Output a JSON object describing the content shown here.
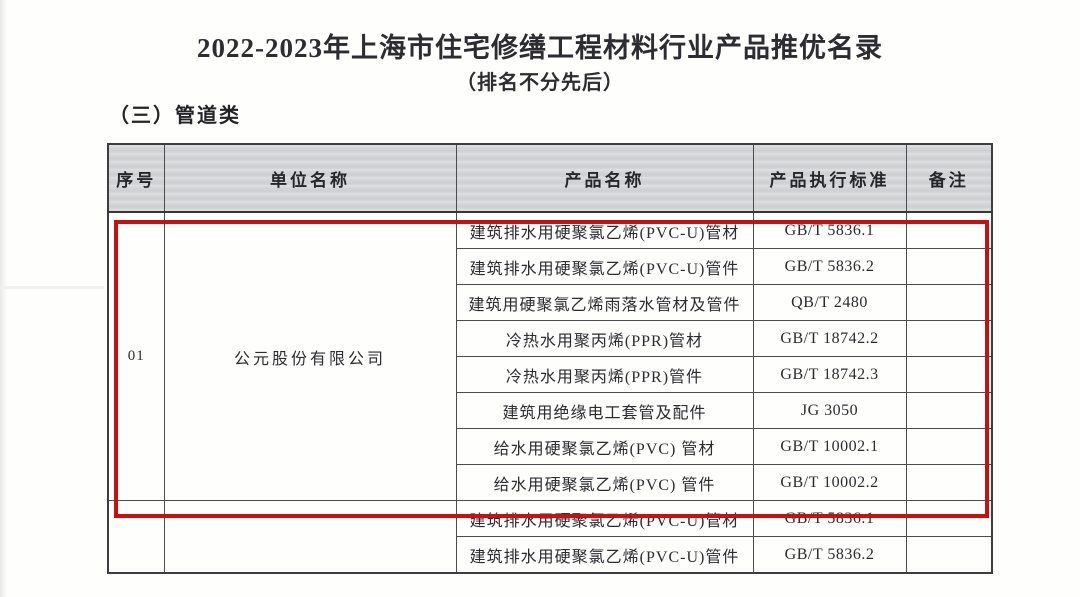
{
  "page": {
    "title": "2022-2023年上海市住宅修缮工程材料行业产品推优名录",
    "subtitle": "（排名不分先后）",
    "section_heading": "（三）管道类"
  },
  "table": {
    "columns": [
      "序号",
      "单位名称",
      "产品名称",
      "产品执行标准",
      "备注"
    ],
    "groups": [
      {
        "no": "01",
        "company": "公元股份有限公司",
        "highlighted": true,
        "products": [
          {
            "name": "建筑排水用硬聚氯乙烯(PVC-U)管材",
            "standard": "GB/T 5836.1",
            "remark": ""
          },
          {
            "name": "建筑排水用硬聚氯乙烯(PVC-U)管件",
            "standard": "GB/T 5836.2",
            "remark": ""
          },
          {
            "name": "建筑用硬聚氯乙烯雨落水管材及管件",
            "standard": "QB/T 2480",
            "remark": ""
          },
          {
            "name": "冷热水用聚丙烯(PPR)管材",
            "standard": "GB/T 18742.2",
            "remark": ""
          },
          {
            "name": "冷热水用聚丙烯(PPR)管件",
            "standard": "GB/T 18742.3",
            "remark": ""
          },
          {
            "name": "建筑用绝缘电工套管及配件",
            "standard": "JG 3050",
            "remark": ""
          },
          {
            "name": "给水用硬聚氯乙烯(PVC) 管材",
            "standard": "GB/T 10002.1",
            "remark": ""
          },
          {
            "name": "给水用硬聚氯乙烯(PVC) 管件",
            "standard": "GB/T 10002.2",
            "remark": ""
          }
        ]
      },
      {
        "no": "",
        "company": "",
        "highlighted": false,
        "products": [
          {
            "name": "建筑排水用硬聚氯乙烯(PVC-U)管材",
            "standard": "GB/T 5836.1",
            "remark": ""
          },
          {
            "name": "建筑排水用硬聚氯乙烯(PVC-U)管件",
            "standard": "GB/T 5836.2",
            "remark": ""
          }
        ]
      }
    ]
  },
  "annotation": {
    "highlight_color": "#c81010"
  }
}
